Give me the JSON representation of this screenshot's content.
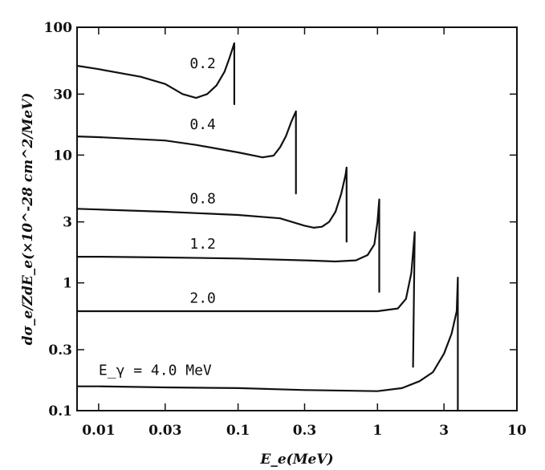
{
  "chart_data": {
    "type": "line",
    "title": "",
    "xlabel": "E_e(MeV)",
    "ylabel": "dσ_e/ZdE_e(×10^-28 cm^2/MeV)",
    "xscale": "log",
    "yscale": "log",
    "xlim": [
      0.007,
      10
    ],
    "ylim": [
      0.1,
      100
    ],
    "x_ticks": [
      0.01,
      0.03,
      0.1,
      0.3,
      1,
      3,
      10
    ],
    "x_tick_labels": [
      "0.01",
      "0.03",
      "0.1",
      "0.3",
      "1",
      "3",
      "10"
    ],
    "y_ticks": [
      0.1,
      0.3,
      1,
      3,
      10,
      30,
      100
    ],
    "y_tick_labels": [
      "0.1",
      "0.3",
      "1",
      "3",
      "10",
      "30",
      "100"
    ],
    "grid": false,
    "series": [
      {
        "name": "0.2",
        "label": "0.2",
        "x": [
          0.007,
          0.01,
          0.02,
          0.03,
          0.04,
          0.05,
          0.06,
          0.07,
          0.08,
          0.087,
          0.094,
          0.094
        ],
        "y": [
          50,
          47,
          41,
          36,
          30,
          28,
          30,
          35,
          45,
          58,
          75,
          25
        ]
      },
      {
        "name": "0.4",
        "label": "0.4",
        "x": [
          0.007,
          0.01,
          0.03,
          0.05,
          0.1,
          0.15,
          0.18,
          0.2,
          0.22,
          0.24,
          0.25,
          0.26,
          0.26
        ],
        "y": [
          14,
          13.8,
          13,
          12,
          10.5,
          9.6,
          9.9,
          11.5,
          14,
          18,
          20,
          22,
          5
        ]
      },
      {
        "name": "0.8",
        "label": "0.8",
        "x": [
          0.007,
          0.01,
          0.03,
          0.1,
          0.2,
          0.3,
          0.35,
          0.4,
          0.45,
          0.5,
          0.55,
          0.59,
          0.6,
          0.6
        ],
        "y": [
          3.8,
          3.75,
          3.6,
          3.4,
          3.2,
          2.8,
          2.7,
          2.75,
          3,
          3.6,
          5,
          7,
          8,
          2.1
        ]
      },
      {
        "name": "1.2",
        "label": "1.2",
        "x": [
          0.007,
          0.01,
          0.03,
          0.1,
          0.3,
          0.5,
          0.7,
          0.85,
          0.95,
          1.0,
          1.03,
          1.03
        ],
        "y": [
          1.6,
          1.6,
          1.58,
          1.55,
          1.5,
          1.47,
          1.5,
          1.65,
          2.0,
          3.0,
          4.5,
          0.85
        ]
      },
      {
        "name": "2.0",
        "label": "2.0",
        "x": [
          0.007,
          0.01,
          0.03,
          0.1,
          0.3,
          0.7,
          1.0,
          1.4,
          1.6,
          1.75,
          1.85,
          1.8
        ],
        "y": [
          0.6,
          0.6,
          0.6,
          0.6,
          0.6,
          0.6,
          0.6,
          0.63,
          0.75,
          1.2,
          2.5,
          0.22
        ]
      },
      {
        "name": "4.0",
        "label": "4.0 MeV",
        "x": [
          0.007,
          0.01,
          0.03,
          0.1,
          0.3,
          1.0,
          1.5,
          2.0,
          2.5,
          3.0,
          3.4,
          3.7,
          3.77,
          3.77
        ],
        "y": [
          0.155,
          0.155,
          0.152,
          0.15,
          0.145,
          0.142,
          0.15,
          0.17,
          0.2,
          0.28,
          0.4,
          0.6,
          1.1,
          0.1
        ]
      }
    ],
    "annotations": [
      {
        "text": "0.2",
        "x": 0.045,
        "y": 48
      },
      {
        "text": "0.4",
        "x": 0.045,
        "y": 16
      },
      {
        "text": "0.8",
        "x": 0.045,
        "y": 4.2
      },
      {
        "text": "1.2",
        "x": 0.045,
        "y": 1.85
      },
      {
        "text": "2.0",
        "x": 0.045,
        "y": 0.7
      },
      {
        "text": "E_γ = 4.0 MeV",
        "x": 0.01,
        "y": 0.19
      }
    ]
  }
}
